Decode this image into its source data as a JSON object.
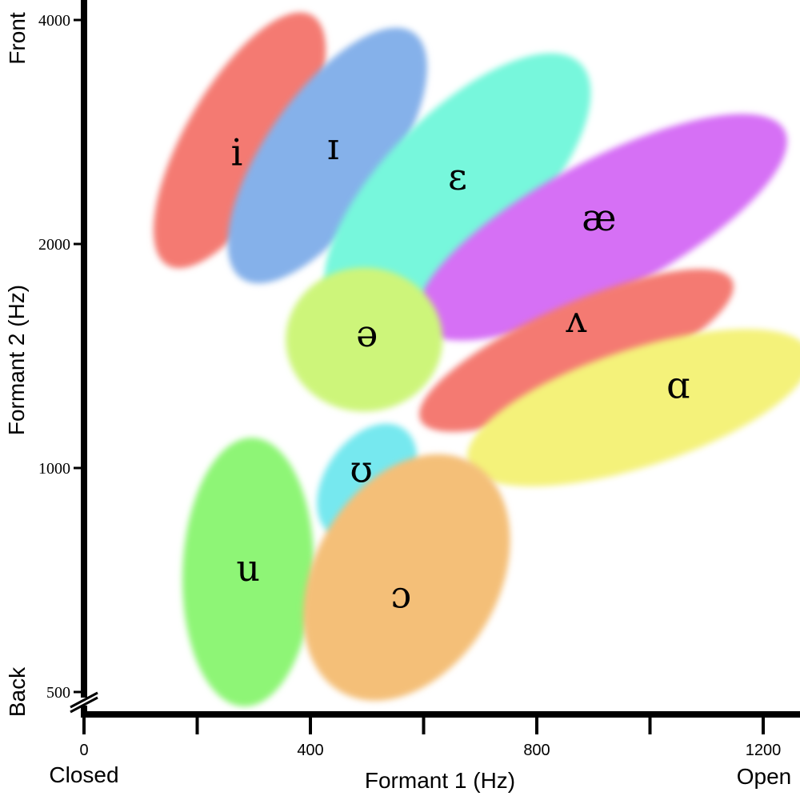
{
  "chart_data": {
    "type": "scatter",
    "title": "",
    "xlabel": "Formant 1 (Hz)",
    "ylabel": "Formant 2 (Hz)",
    "x_end_labels": {
      "left": "Closed",
      "right": "Open"
    },
    "y_end_labels": {
      "bottom": "Back",
      "top": "Front"
    },
    "xlim": [
      0,
      1260
    ],
    "ylim": [
      450,
      4100
    ],
    "y_scale": "compressed-log",
    "x_ticks": [
      0,
      200,
      400,
      600,
      800,
      1000,
      1200
    ],
    "x_tick_labels": [
      "0",
      "",
      "400",
      "",
      "800",
      "",
      "1200"
    ],
    "y_ticks": [
      500,
      1000,
      2000,
      4000
    ],
    "y_tick_labels": [
      "500",
      "1000",
      "2000",
      "4000"
    ],
    "grid": false,
    "axis_break": "y",
    "vowels": [
      {
        "symbol": "i",
        "f1": 270,
        "f2": 2630,
        "f1_range": [
          125,
          425
        ],
        "f2_range": [
          1900,
          4000
        ],
        "color": "#f47a72"
      },
      {
        "symbol": "ɪ",
        "f1": 440,
        "f2": 2680,
        "f1_range": [
          260,
          600
        ],
        "f2_range": [
          1820,
          3800
        ],
        "color": "#85b1ea"
      },
      {
        "symbol": "ɛ",
        "f1": 660,
        "f2": 2440,
        "f1_range": [
          420,
          900
        ],
        "f2_range": [
          1680,
          3400
        ],
        "color": "#77f7dc"
      },
      {
        "symbol": "æ",
        "f1": 910,
        "f2": 2150,
        "f1_range": [
          590,
          1240
        ],
        "f2_range": [
          1530,
          2900
        ],
        "color": "#d670f5"
      },
      {
        "symbol": "ʌ",
        "f1": 870,
        "f2": 1570,
        "f1_range": [
          590,
          1150
        ],
        "f2_range": [
          1150,
          1800
        ],
        "color": "#f47a72"
      },
      {
        "symbol": "ɑ",
        "f1": 1050,
        "f2": 1280,
        "f1_range": [
          700,
          1260
        ],
        "f2_range": [
          930,
          1600
        ],
        "color": "#f4f27a"
      },
      {
        "symbol": "ə",
        "f1": 500,
        "f2": 1500,
        "f1_range": [
          360,
          630
        ],
        "f2_range": [
          1230,
          1800
        ],
        "color": "#cdf57a"
      },
      {
        "symbol": "ʊ",
        "f1": 490,
        "f2": 990,
        "f1_range": [
          400,
          600
        ],
        "f2_range": [
          780,
          1250
        ],
        "color": "#76e8ef"
      },
      {
        "symbol": "u",
        "f1": 290,
        "f2": 770,
        "f1_range": [
          160,
          420
        ],
        "f2_range": [
          500,
          1050
        ],
        "color": "#8ef576"
      },
      {
        "symbol": "ɔ",
        "f1": 560,
        "f2": 710,
        "f1_range": [
          390,
          750
        ],
        "f2_range": [
          490,
          1030
        ],
        "color": "#f4bf78"
      }
    ]
  }
}
